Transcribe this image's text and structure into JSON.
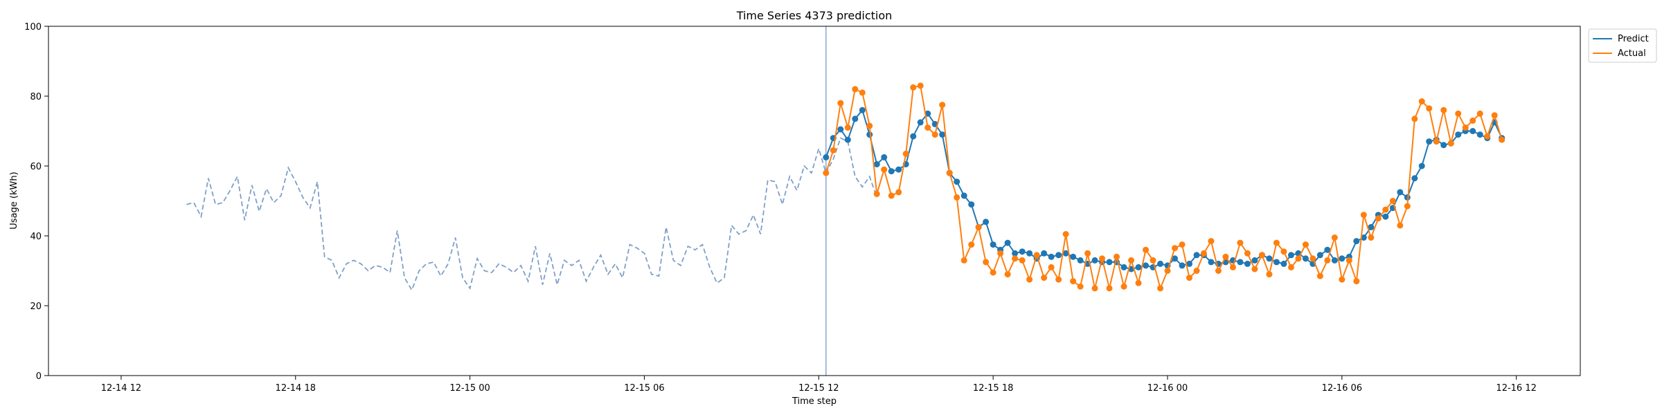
{
  "chart_data": {
    "type": "line",
    "title": "Time Series 4373 prediction",
    "xlabel": "Time step",
    "ylabel": "Usage (kWh)",
    "ylim": [
      0,
      100
    ],
    "y_ticks": [
      0,
      20,
      40,
      60,
      80,
      100
    ],
    "x_ticks": [
      "12-14 12",
      "12-14 18",
      "12-15 00",
      "12-15 06",
      "12-15 12",
      "12-15 18",
      "12-16 00",
      "12-16 06",
      "12-16 12"
    ],
    "x_axis_unit": "hours",
    "x_tick_positions": [
      0,
      6,
      12,
      18,
      24,
      30,
      36,
      42,
      48
    ],
    "xlim": [
      -2.5,
      50.2
    ],
    "grid": false,
    "legend_position": "upper right outside",
    "forecast_start": 24.25,
    "history": {
      "start": 2.25,
      "step": 0.25,
      "style": "dashed",
      "color": "#7f9fc8",
      "values": [
        49,
        49.5,
        45.5,
        56.5,
        49,
        49.5,
        53,
        57,
        44.5,
        54.5,
        47,
        53.5,
        49.5,
        51.5,
        59.5,
        55.5,
        51,
        48,
        55.5,
        34,
        33,
        28,
        32,
        33,
        32,
        30,
        31.5,
        31,
        29.5,
        41.5,
        28,
        24.5,
        30,
        32,
        32.5,
        28.5,
        32,
        39.5,
        28,
        25,
        33.5,
        30,
        29.5,
        32,
        31,
        29.5,
        31.5,
        27,
        37,
        26,
        35,
        26,
        33,
        31.5,
        33,
        27,
        31,
        34.5,
        29,
        32,
        28,
        37.5,
        36.5,
        35,
        29,
        28.5,
        42.5,
        33,
        31.5,
        37,
        36,
        37.5,
        31,
        26.5,
        28,
        43,
        40.5,
        41.5,
        46,
        40.5,
        56,
        55.5,
        49,
        57,
        53,
        60,
        58,
        65,
        58,
        62,
        68,
        67,
        57,
        54,
        57,
        51
      ]
    },
    "series": [
      {
        "name": "Predict",
        "color": "#1f77b4",
        "start": 24.25,
        "step": 0.25,
        "values": [
          62.5,
          68,
          70.5,
          67.5,
          73.5,
          76,
          69,
          60.5,
          62.5,
          58.5,
          59,
          60.5,
          68.5,
          72.5,
          75,
          72,
          69,
          58,
          55.5,
          51.5,
          49,
          42.5,
          44,
          37.5,
          36,
          38,
          35,
          35.5,
          35,
          33.5,
          35,
          34,
          34.5,
          35,
          34,
          33,
          32,
          33,
          32.5,
          32.5,
          32.5,
          31,
          30.5,
          31,
          31.5,
          31,
          32,
          31.5,
          33.5,
          31.5,
          32,
          34.5,
          34.5,
          32.5,
          32,
          32.5,
          33,
          32.5,
          32,
          33,
          34.5,
          33.5,
          32.5,
          32,
          34.5,
          35,
          33.5,
          32,
          34.5,
          36,
          33,
          33.5,
          34,
          38.5,
          39.5,
          42.5,
          46,
          45.5,
          48,
          52.5,
          51,
          56.5,
          60,
          67,
          67.5,
          66,
          66.5,
          69,
          70,
          70,
          69,
          68,
          72.5,
          68
        ]
      },
      {
        "name": "Actual",
        "color": "#ff7f0e",
        "start": 24.25,
        "step": 0.25,
        "values": [
          58,
          64.5,
          78,
          71,
          82,
          81,
          71.5,
          52,
          59,
          51.5,
          52.5,
          63.5,
          82.5,
          83,
          71,
          69,
          77.5,
          58,
          51,
          33,
          37.5,
          42.5,
          32.5,
          29.5,
          35,
          29,
          33.5,
          33,
          27.5,
          34.5,
          28,
          31,
          27.5,
          40.5,
          27,
          25.5,
          35,
          25,
          33.5,
          25,
          34,
          25.5,
          33,
          26.5,
          36,
          33,
          25,
          30,
          36.5,
          37.5,
          28,
          30,
          35,
          38.5,
          30,
          34,
          31,
          38,
          35,
          30.5,
          34.5,
          29,
          38,
          35.5,
          31,
          33.5,
          37.5,
          33.5,
          28.5,
          33,
          39.5,
          27.5,
          33,
          27,
          46,
          39.5,
          45,
          47.5,
          50,
          43,
          48.5,
          73.5,
          78.5,
          76.5,
          67,
          76,
          66.5,
          75,
          71,
          73,
          75,
          68.5,
          74.5,
          67.5
        ]
      }
    ]
  }
}
